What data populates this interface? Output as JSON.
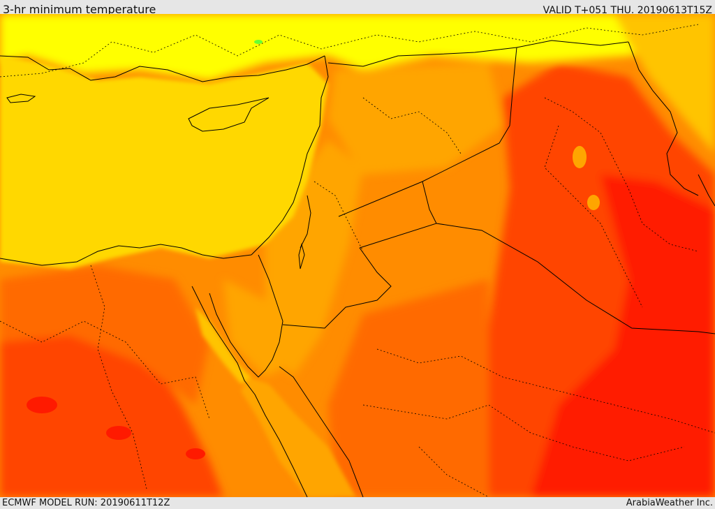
{
  "header": {
    "title": "3-hr minimum temperature",
    "valid": "VALID T+051 THU. 20190613T15Z"
  },
  "footer": {
    "model_run": "ECMWF MODEL RUN: 20190611T12Z",
    "credit": "ArabiaWeather Inc."
  },
  "colors": {
    "sea_yellow": "#ffd800",
    "light_yellow": "#ffff00",
    "gold": "#ffc400",
    "amber": "#ffa500",
    "orange": "#ff8c00",
    "dark_orange": "#ff6a00",
    "red_orange": "#ff4500",
    "red": "#ff1a00",
    "green_speck": "#66ff33",
    "border_line": "#000000"
  }
}
